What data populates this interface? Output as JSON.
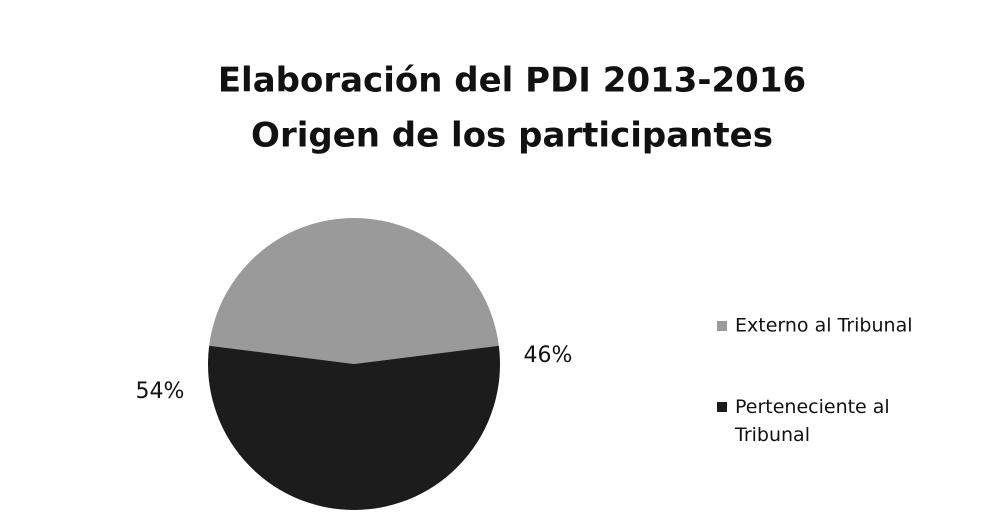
{
  "chart_data": {
    "type": "pie",
    "title": [
      "Elaboración del PDI 2013-2016",
      "Origen de los participantes"
    ],
    "categories": [
      "Externo al Tribunal",
      "Perteneciente al Tribunal"
    ],
    "values": [
      46,
      54
    ],
    "value_labels": [
      "46%",
      "54%"
    ],
    "colors": [
      "#9a9a9a",
      "#1c1c1c"
    ],
    "legend": "right"
  }
}
